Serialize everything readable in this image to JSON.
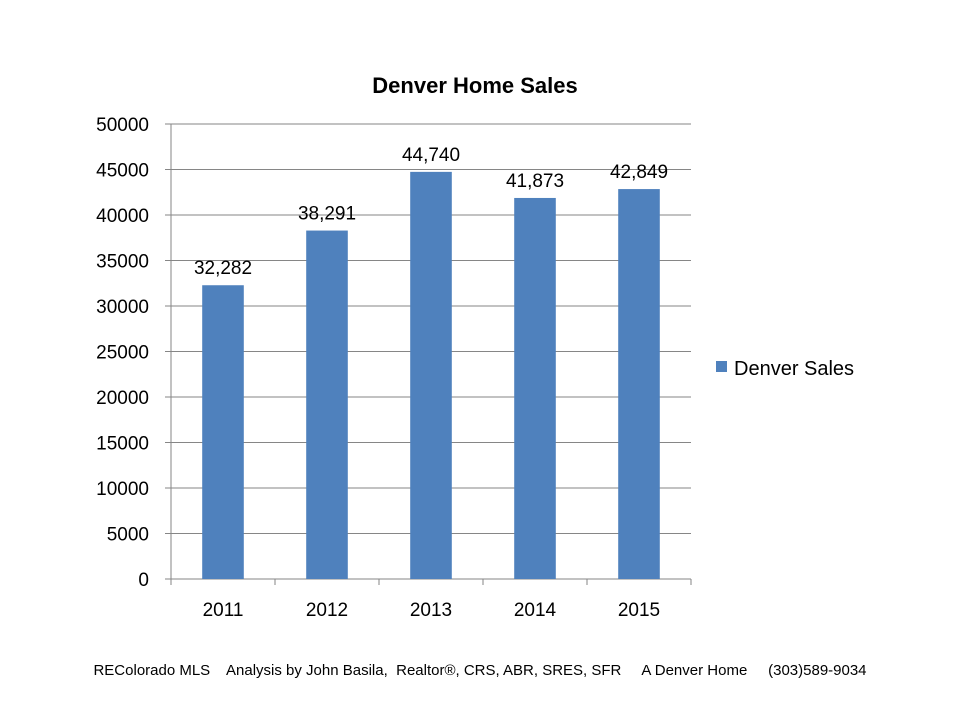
{
  "chart_data": {
    "type": "bar",
    "title": "Denver Home Sales",
    "xlabel": "",
    "ylabel": "",
    "categories": [
      "2011",
      "2012",
      "2013",
      "2014",
      "2015"
    ],
    "series": [
      {
        "name": "Denver Sales",
        "values": [
          32282,
          38291,
          44740,
          41873,
          42849
        ],
        "value_labels": [
          "32,282",
          "38,291",
          "44,740",
          "41,873",
          "42,849"
        ],
        "color": "#4f81bd"
      }
    ],
    "ylim": [
      0,
      50000
    ],
    "yticks": [
      "0",
      "5000",
      "10000",
      "15000",
      "20000",
      "25000",
      "30000",
      "35000",
      "40000",
      "45000",
      "50000"
    ],
    "grid": true,
    "legend_position": "right"
  },
  "footer": {
    "text": "REColorado MLS    Analysis by John Basila,  Realtor®, CRS, ABR, SRES, SFR     A Denver Home     (303)589-9034"
  }
}
